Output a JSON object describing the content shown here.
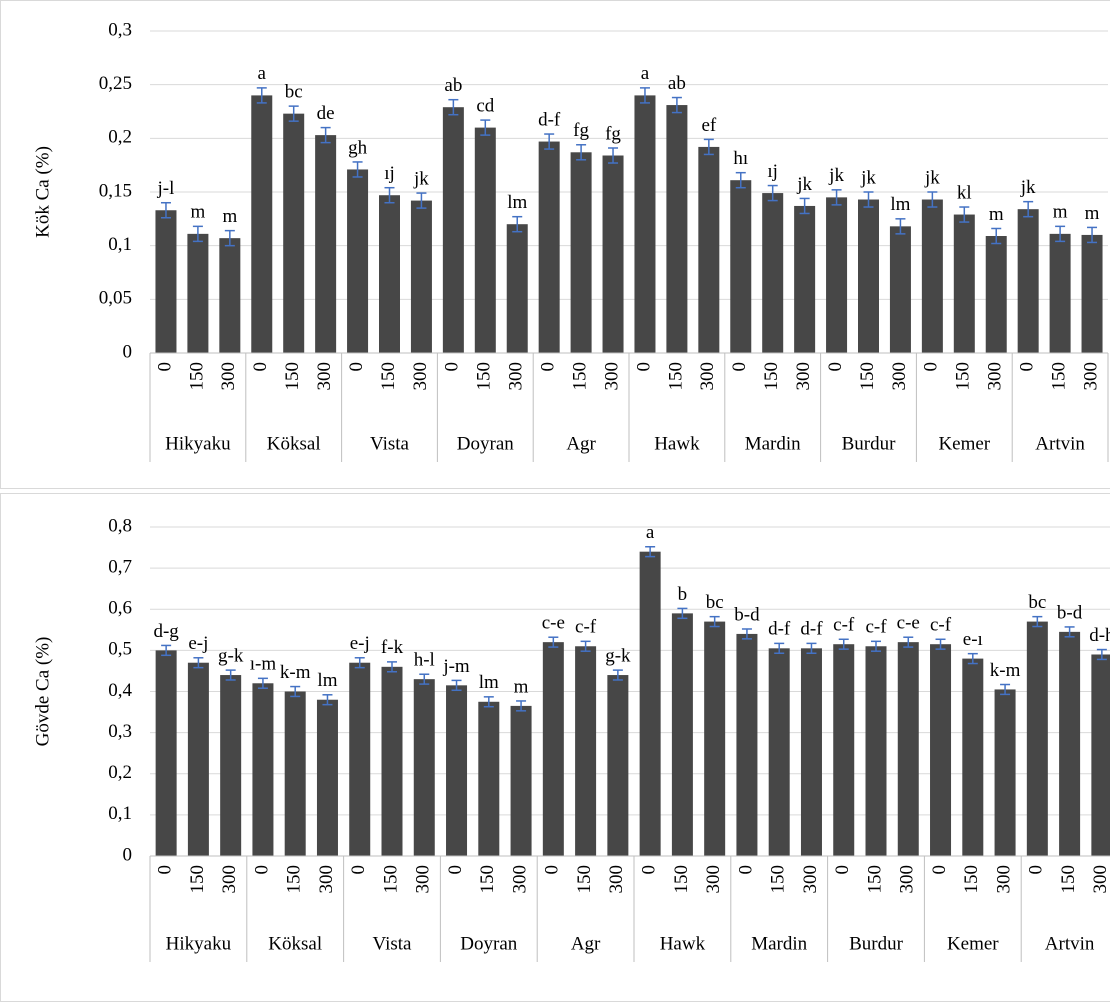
{
  "chart_data": [
    {
      "type": "bar",
      "y_label": "Kök Ca (%)",
      "groups": [
        "Hikyaku",
        "Köksal",
        "Vista",
        "Doyran",
        "Agr",
        "Hawk",
        "Mardin",
        "Burdur",
        "Kemer",
        "Artvin"
      ],
      "categories": [
        "0",
        "150",
        "300",
        "0",
        "150",
        "300",
        "0",
        "150",
        "300",
        "0",
        "150",
        "300",
        "0",
        "150",
        "300",
        "0",
        "150",
        "300",
        "0",
        "150",
        "300",
        "0",
        "150",
        "300",
        "0",
        "150",
        "300",
        "0",
        "150",
        "300"
      ],
      "values": [
        0.133,
        0.111,
        0.107,
        0.24,
        0.223,
        0.203,
        0.171,
        0.147,
        0.142,
        0.229,
        0.21,
        0.12,
        0.197,
        0.187,
        0.184,
        0.24,
        0.231,
        0.192,
        0.161,
        0.149,
        0.137,
        0.145,
        0.143,
        0.118,
        0.143,
        0.129,
        0.109,
        0.134,
        0.111,
        0.11
      ],
      "errors": [
        0.007,
        0.007,
        0.007,
        0.007,
        0.007,
        0.007,
        0.007,
        0.007,
        0.007,
        0.007,
        0.007,
        0.007,
        0.007,
        0.007,
        0.007,
        0.007,
        0.007,
        0.007,
        0.007,
        0.007,
        0.007,
        0.007,
        0.007,
        0.007,
        0.007,
        0.007,
        0.007,
        0.007,
        0.007,
        0.007
      ],
      "annotations": [
        "j-l",
        "m",
        "m",
        "a",
        "bc",
        "de",
        "gh",
        "ıj",
        "jk",
        "ab",
        "cd",
        "lm",
        "d-f",
        "fg",
        "fg",
        "a",
        "ab",
        "ef",
        "hı",
        "ıj",
        "jk",
        "jk",
        "jk",
        "lm",
        "jk",
        "kl",
        "m",
        "jk",
        "m",
        "m"
      ],
      "color": "#474747",
      "error_color": "#4472c4",
      "ylim": [
        0,
        0.3
      ],
      "yticks": [
        0,
        {
          "value": 0.05,
          "label": "0,05"
        },
        {
          "value": 0.1,
          "label": "0,1"
        },
        {
          "value": 0.15,
          "label": "0,15"
        },
        {
          "value": 0.2,
          "label": "0,2"
        },
        {
          "value": 0.25,
          "label": "0,25"
        },
        {
          "value": 0.3,
          "label": "0,3"
        }
      ],
      "grid": true
    },
    {
      "type": "bar",
      "y_label": "Gövde Ca (%)",
      "groups": [
        "Hikyaku",
        "Köksal",
        "Vista",
        "Doyran",
        "Agr",
        "Hawk",
        "Mardin",
        "Burdur",
        "Kemer",
        "Artvin"
      ],
      "categories": [
        "0",
        "150",
        "300",
        "0",
        "150",
        "300",
        "0",
        "150",
        "300",
        "0",
        "150",
        "300",
        "0",
        "150",
        "300",
        "0",
        "150",
        "300",
        "0",
        "150",
        "300",
        "0",
        "150",
        "300",
        "0",
        "150",
        "300",
        "0",
        "150",
        "300"
      ],
      "values": [
        0.5,
        0.47,
        0.44,
        0.42,
        0.4,
        0.38,
        0.47,
        0.46,
        0.43,
        0.415,
        0.375,
        0.365,
        0.52,
        0.51,
        0.44,
        0.74,
        0.59,
        0.57,
        0.54,
        0.505,
        0.505,
        0.515,
        0.51,
        0.52,
        0.515,
        0.48,
        0.405,
        0.57,
        0.545,
        0.49
      ],
      "errors": [
        0.012,
        0.012,
        0.012,
        0.012,
        0.012,
        0.012,
        0.012,
        0.012,
        0.012,
        0.012,
        0.012,
        0.012,
        0.012,
        0.012,
        0.012,
        0.012,
        0.012,
        0.012,
        0.012,
        0.012,
        0.012,
        0.012,
        0.012,
        0.012,
        0.012,
        0.012,
        0.012,
        0.012,
        0.012,
        0.012
      ],
      "annotations": [
        "d-g",
        "e-j",
        "g-k",
        "ı-m",
        "k-m",
        "lm",
        "e-j",
        "f-k",
        "h-l",
        "j-m",
        "lm",
        "m",
        "c-e",
        "c-f",
        "g-k",
        "a",
        "b",
        "bc",
        "b-d",
        "d-f",
        "d-f",
        "c-f",
        "c-f",
        "c-e",
        "c-f",
        "e-ı",
        "k-m",
        "bc",
        "b-d",
        "d-h"
      ],
      "color": "#474747",
      "error_color": "#4472c4",
      "ylim": [
        0,
        0.8
      ],
      "yticks": [
        0,
        {
          "value": 0.1,
          "label": "0,1"
        },
        {
          "value": 0.2,
          "label": "0,2"
        },
        {
          "value": 0.3,
          "label": "0,3"
        },
        {
          "value": 0.4,
          "label": "0,4"
        },
        {
          "value": 0.5,
          "label": "0,5"
        },
        {
          "value": 0.6,
          "label": "0,6"
        },
        {
          "value": 0.7,
          "label": "0,7"
        },
        {
          "value": 0.8,
          "label": "0,8"
        }
      ],
      "grid": true
    }
  ]
}
